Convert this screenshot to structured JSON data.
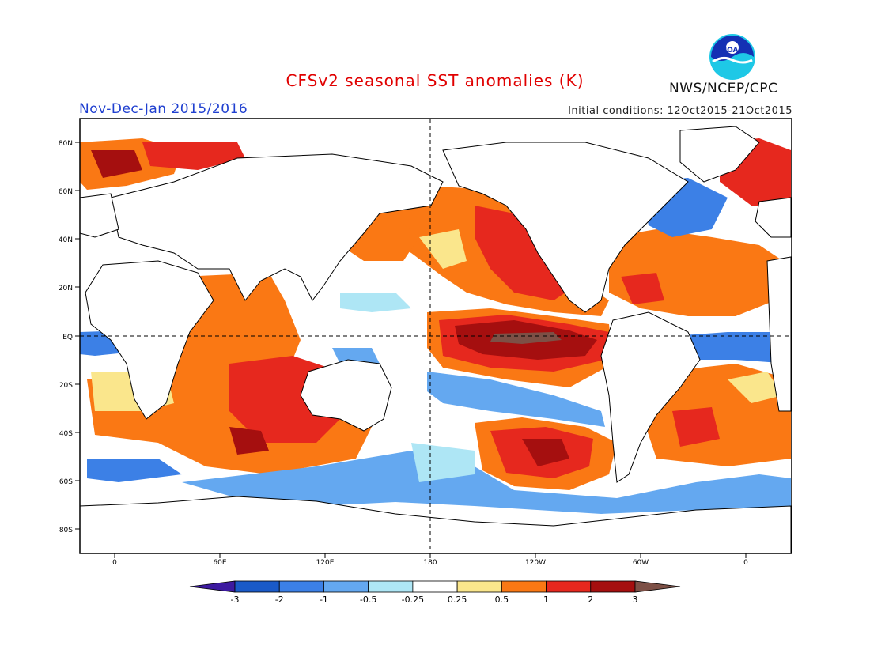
{
  "title": "CFSv2 seasonal SST anomalies (K)",
  "period": "Nov-Dec-Jan 2015/2016",
  "initial_conditions": "Initial conditions: 12Oct2015-21Oct2015",
  "organization": "NWS/NCEP/CPC",
  "logo_text": "NOAA",
  "lat_labels": [
    "80N",
    "60N",
    "40N",
    "20N",
    "EQ",
    "20S",
    "40S",
    "60S",
    "80S"
  ],
  "lon_labels": [
    "0",
    "60E",
    "120E",
    "180",
    "120W",
    "60W",
    "0"
  ],
  "colorbar": {
    "ticks": [
      "-3",
      "-2",
      "-1",
      "-0.5",
      "-0.25",
      "0.25",
      "0.5",
      "1",
      "2",
      "3"
    ],
    "colors": [
      "#3d1aa0",
      "#1a5ac8",
      "#3c80e6",
      "#64a8f0",
      "#aee6f5",
      "#ffffff",
      "#fae68c",
      "#fa7814",
      "#e6281e",
      "#a50f0f",
      "#7d5046"
    ]
  },
  "map": {
    "projection": "equirectangular",
    "lon_range": [
      "20W",
      "20E"
    ],
    "lat_range": [
      "90S",
      "90N"
    ],
    "reference_lines": [
      "EQ",
      "180"
    ],
    "land_color": "#ffffff",
    "coastline_color": "#000000"
  }
}
